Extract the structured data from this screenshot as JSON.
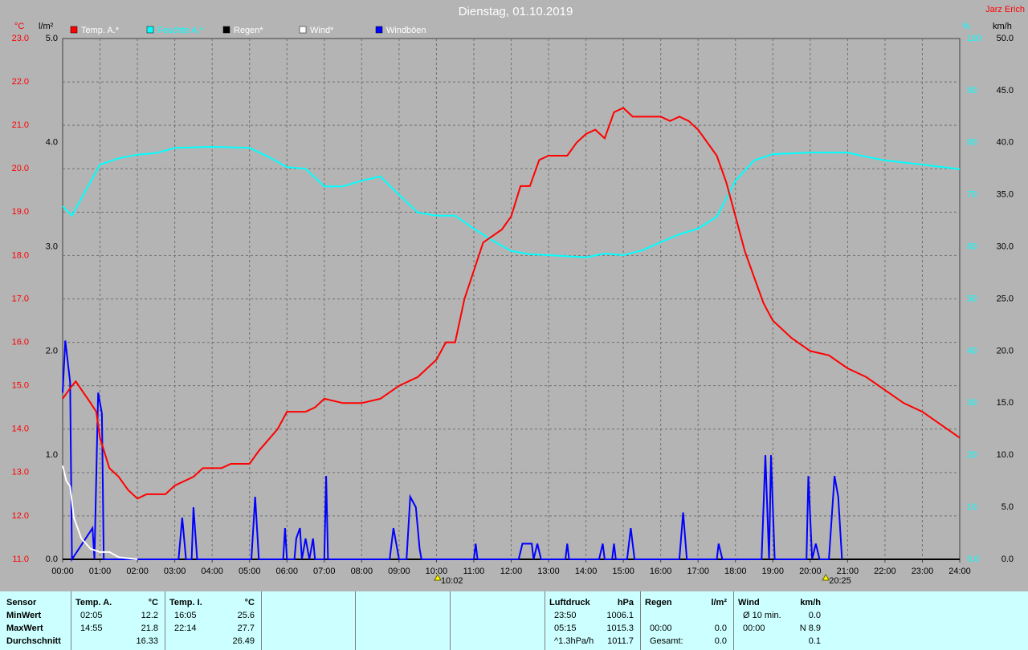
{
  "chart_data": {
    "type": "line",
    "title": "Dienstag, 01.10.2019",
    "author": "Jarz Erich",
    "units": {
      "y": "°C",
      "y2": "l/m²",
      "y3": "%",
      "y4": "km/h"
    },
    "xlim": [
      0,
      24
    ],
    "xticks": [
      {
        "value": 0,
        "label": "00:00"
      },
      {
        "value": 1,
        "label": "01:00"
      },
      {
        "value": 2,
        "label": "02:00"
      },
      {
        "value": 3,
        "label": "03:00"
      },
      {
        "value": 4,
        "label": "04:00"
      },
      {
        "value": 5,
        "label": "05:00"
      },
      {
        "value": 6,
        "label": "06:00"
      },
      {
        "value": 7,
        "label": "07:00"
      },
      {
        "value": 8,
        "label": "08:00"
      },
      {
        "value": 9,
        "label": "09:00"
      },
      {
        "value": 10,
        "label": "10:00"
      },
      {
        "value": 11,
        "label": "11:00"
      },
      {
        "value": 12,
        "label": "12:00"
      },
      {
        "value": 13,
        "label": "13:00"
      },
      {
        "value": 14,
        "label": "14:00"
      },
      {
        "value": 15,
        "label": "15:00"
      },
      {
        "value": 16,
        "label": "16:00"
      },
      {
        "value": 17,
        "label": "17:00"
      },
      {
        "value": 18,
        "label": "18:00"
      },
      {
        "value": 19,
        "label": "19:00"
      },
      {
        "value": 20,
        "label": "20:00"
      },
      {
        "value": 21,
        "label": "21:00"
      },
      {
        "value": 22,
        "label": "22:00"
      },
      {
        "value": 23,
        "label": "23:00"
      },
      {
        "value": 24,
        "label": "24:00"
      }
    ],
    "ylim": [
      11,
      23
    ],
    "yticks": [
      {
        "value": 11,
        "label": "11.0"
      },
      {
        "value": 12,
        "label": "12.0"
      },
      {
        "value": 13,
        "label": "13.0"
      },
      {
        "value": 14,
        "label": "14.0"
      },
      {
        "value": 15,
        "label": "15.0"
      },
      {
        "value": 16,
        "label": "16.0"
      },
      {
        "value": 17,
        "label": "17.0"
      },
      {
        "value": 18,
        "label": "18.0"
      },
      {
        "value": 19,
        "label": "19.0"
      },
      {
        "value": 20,
        "label": "20.0"
      },
      {
        "value": 21,
        "label": "21.0"
      },
      {
        "value": 22,
        "label": "22.0"
      },
      {
        "value": 23,
        "label": "23.0"
      }
    ],
    "y2lim": [
      0,
      5
    ],
    "y2ticks": [
      {
        "value": 0,
        "label": "0.0"
      },
      {
        "value": 1,
        "label": "1.0"
      },
      {
        "value": 2,
        "label": "2.0"
      },
      {
        "value": 3,
        "label": "3.0"
      },
      {
        "value": 4,
        "label": "4.0"
      },
      {
        "value": 5,
        "label": "5.0"
      }
    ],
    "y3lim": [
      0,
      100
    ],
    "y3ticks": [
      {
        "value": 0,
        "label": "0.0"
      },
      10,
      20,
      30,
      40,
      50,
      60,
      70,
      80,
      90,
      100
    ],
    "y4lim": [
      0,
      50
    ],
    "y4ticks": [
      {
        "value": 0,
        "label": "0.0"
      },
      {
        "value": 5,
        "label": "5.0"
      },
      {
        "value": 10,
        "label": "10.0"
      },
      {
        "value": 15,
        "label": "15.0"
      },
      {
        "value": 20,
        "label": "20.0"
      },
      {
        "value": 25,
        "label": "25.0"
      },
      {
        "value": 30,
        "label": "30.0"
      },
      {
        "value": 35,
        "label": "35.0"
      },
      {
        "value": 40,
        "label": "40.0"
      },
      {
        "value": 45,
        "label": "45.0"
      },
      {
        "value": 50,
        "label": "50.0"
      }
    ],
    "grid": true,
    "annotations": [
      {
        "x": 10.033,
        "label": "10:02"
      },
      {
        "x": 20.417,
        "label": "20:25"
      }
    ],
    "series": [
      {
        "name": "Temp. A.*",
        "color": "#ff0000",
        "axis": "y",
        "x": [
          0,
          0.25,
          0.35,
          0.75,
          0.9,
          1,
          1.25,
          1.5,
          1.75,
          2,
          2.25,
          2.75,
          3,
          3.5,
          3.75,
          4.25,
          4.5,
          5,
          5.25,
          5.75,
          6,
          6.5,
          6.75,
          7,
          7.5,
          8,
          8.5,
          9,
          9.5,
          10,
          10.25,
          10.5,
          10.75,
          11.25,
          11.75,
          12,
          12.25,
          12.5,
          12.75,
          13,
          13.5,
          13.75,
          14,
          14.25,
          14.5,
          14.75,
          15,
          15.25,
          15.5,
          15.75,
          16,
          16.25,
          16.5,
          16.75,
          17,
          17.5,
          17.75,
          18,
          18.25,
          18.5,
          18.75,
          19,
          19.5,
          20,
          20.5,
          21,
          21.5,
          22,
          22.5,
          23,
          23.5,
          24
        ],
        "values": [
          14.7,
          15,
          15.1,
          14.6,
          14.4,
          13.8,
          13.1,
          12.9,
          12.6,
          12.4,
          12.5,
          12.5,
          12.7,
          12.9,
          13.1,
          13.1,
          13.2,
          13.2,
          13.5,
          14,
          14.4,
          14.4,
          14.5,
          14.7,
          14.6,
          14.6,
          14.7,
          15,
          15.2,
          15.6,
          16,
          16,
          17,
          18.3,
          18.6,
          18.9,
          19.6,
          19.6,
          20.2,
          20.3,
          20.3,
          20.6,
          20.8,
          20.9,
          20.7,
          21.3,
          21.4,
          21.2,
          21.2,
          21.2,
          21.2,
          21.1,
          21.2,
          21.1,
          20.9,
          20.3,
          19.7,
          18.9,
          18.1,
          17.5,
          16.9,
          16.5,
          16.1,
          15.8,
          15.7,
          15.4,
          15.2,
          14.9,
          14.6,
          14.4,
          14.1,
          13.8
        ]
      },
      {
        "name": "Feuchte A.*",
        "color": "#00ffff",
        "axis": "y3",
        "x": [
          0,
          0.25,
          1,
          1.5,
          2,
          2.5,
          3,
          4,
          5,
          5.5,
          6,
          6.5,
          7,
          7.5,
          8,
          8.5,
          9,
          9.5,
          10,
          10.5,
          11,
          11.5,
          12,
          12.5,
          13,
          14,
          14.5,
          15,
          15.5,
          16,
          16.5,
          17,
          17.5,
          18,
          18.5,
          19,
          20,
          21,
          21.5,
          22,
          23,
          24
        ],
        "values": [
          67.8,
          66,
          75.8,
          77,
          77.7,
          78,
          79,
          79.2,
          79,
          77.3,
          75.3,
          75,
          71.6,
          71.6,
          72.7,
          73.5,
          70,
          66.6,
          66,
          66,
          63.5,
          61.2,
          59.2,
          58.6,
          58.4,
          58,
          58.7,
          58.4,
          59.3,
          60.9,
          62.4,
          63.5,
          65.8,
          72.7,
          76.6,
          77.8,
          78.1,
          78.1,
          77.3,
          76.6,
          75.8,
          74.9
        ]
      },
      {
        "name": "Regen*",
        "color": "#000000",
        "axis": "y2",
        "x": [
          0,
          24
        ],
        "values": [
          0,
          0
        ]
      },
      {
        "name": "Wind*",
        "color": "#ffffff",
        "axis": "y4",
        "x": [
          0,
          0.1,
          0.2,
          0.3,
          0.5,
          0.75,
          1,
          1.25,
          1.5,
          2
        ],
        "values": [
          9,
          7.5,
          7,
          4,
          2,
          1,
          0.7,
          0.7,
          0.2,
          0
        ]
      },
      {
        "name": "Windböen",
        "color": "#0000ff",
        "axis": "y4",
        "x": [
          0,
          0.07,
          0.2,
          0.25,
          0.8,
          0.85,
          0.95,
          1.05,
          1.1,
          3.1,
          3.2,
          3.3,
          3.45,
          3.5,
          3.6,
          5.05,
          5.15,
          5.25,
          5.9,
          5.95,
          6,
          6.2,
          6.25,
          6.35,
          6.4,
          6.5,
          6.6,
          6.7,
          6.75,
          7,
          7.05,
          7.1,
          8.75,
          8.85,
          9,
          9.2,
          9.3,
          9.45,
          9.55,
          9.6,
          11,
          11.05,
          11.1,
          12.2,
          12.3,
          12.55,
          12.6,
          12.7,
          12.8,
          13.45,
          13.5,
          13.55,
          14.35,
          14.45,
          14.5,
          14.7,
          14.75,
          14.8,
          15.1,
          15.2,
          15.3,
          16.5,
          16.6,
          16.7,
          17.5,
          17.55,
          17.65,
          18.7,
          18.8,
          18.9,
          18.95,
          19.05,
          19.9,
          19.95,
          20.05,
          20.15,
          20.25,
          20.5,
          20.65,
          20.75,
          20.85
        ],
        "values": [
          16,
          21,
          17,
          0,
          3,
          0,
          16,
          14,
          0,
          0,
          4,
          0,
          0,
          5,
          0,
          0,
          6,
          0,
          0,
          3,
          0,
          0,
          2,
          3,
          0,
          2,
          0,
          2,
          0,
          0,
          8,
          0,
          0,
          3,
          0,
          0,
          6,
          5,
          1,
          0,
          0,
          1.5,
          0,
          0,
          1.5,
          1.5,
          0,
          1.5,
          0,
          0,
          1.5,
          0,
          0,
          1.5,
          0,
          0,
          1.5,
          0,
          0,
          3,
          0,
          0,
          4.5,
          0,
          0,
          1.5,
          0,
          0,
          10,
          0,
          10,
          0,
          0,
          8,
          0,
          1.5,
          0,
          0,
          8,
          6,
          0
        ]
      }
    ]
  },
  "table": {
    "label_header": "Sensor",
    "row_labels": [
      "MinWert",
      "MaxWert",
      "Durchschnitt"
    ],
    "groups": [
      {
        "title": "Temp. A.",
        "unit": "°C",
        "rows": [
          [
            "02:05",
            "12.2"
          ],
          [
            "14:55",
            "21.8"
          ],
          [
            null,
            "16.33"
          ]
        ]
      },
      {
        "title": "Temp. I.",
        "unit": "°C",
        "rows": [
          [
            "16:05",
            "25.6"
          ],
          [
            "22:14",
            "27.7"
          ],
          [
            null,
            "26.49"
          ]
        ]
      },
      {
        "title": "Luftdruck",
        "unit": "hPa",
        "rows": [
          [
            "23:50",
            "1006.1"
          ],
          [
            "05:15",
            "1015.3"
          ],
          [
            "^1.3hPa/h",
            "1011.7"
          ]
        ]
      },
      {
        "title": "Regen",
        "unit": "l/m²",
        "rows": [
          [
            null,
            null
          ],
          [
            "00:00",
            "0.0"
          ],
          [
            "Gesamt:",
            "0.0"
          ]
        ]
      },
      {
        "title": "Wind",
        "unit": "km/h",
        "rows": [
          [
            "Ø 10 min.",
            "0.0"
          ],
          [
            "00:00",
            "N 8.9"
          ],
          [
            null,
            "0.1"
          ]
        ]
      }
    ]
  }
}
